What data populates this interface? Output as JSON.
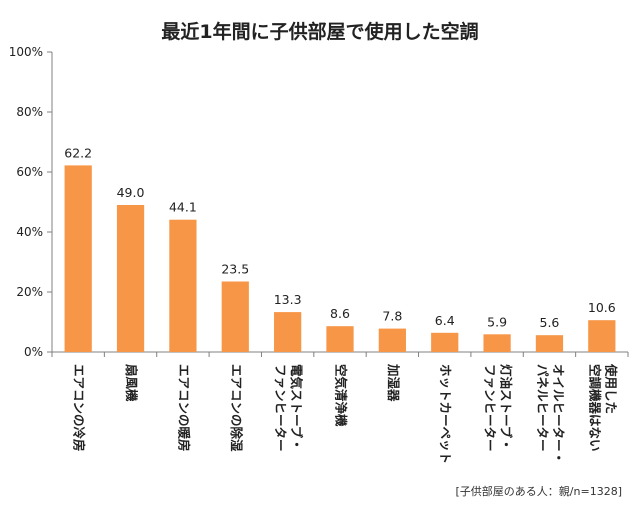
{
  "chart_data": {
    "type": "bar",
    "title": "最近1年間に子供部屋で使用した空調",
    "categories": [
      "エアコンの冷房",
      "扇風機",
      "エアコンの暖房",
      "エアコンの除湿",
      "電気ストーブ・ファンヒーター",
      "空気清浄機",
      "加湿器",
      "ホットカーペット",
      "灯油ストーブ・ファンヒーター",
      "オイルヒーター・パネルヒーター",
      "使用した空調機器はない"
    ],
    "category_label_lines": [
      [
        "エアコンの冷房"
      ],
      [
        "扇風機"
      ],
      [
        "エアコンの暖房"
      ],
      [
        "エアコンの除湿"
      ],
      [
        "電気ストーブ・",
        "ファンヒーター"
      ],
      [
        "空気清浄機"
      ],
      [
        "加湿器"
      ],
      [
        "ホットカーペット"
      ],
      [
        "灯油ストーブ・",
        "ファンヒーター"
      ],
      [
        "オイルヒーター・",
        "パネルヒーター"
      ],
      [
        "使用した",
        "空調機器はない"
      ]
    ],
    "values": [
      62.2,
      49.0,
      44.1,
      23.5,
      13.3,
      8.6,
      7.8,
      6.4,
      5.9,
      5.6,
      10.6
    ],
    "value_labels": [
      "62.2",
      "49.0",
      "44.1",
      "23.5",
      "13.3",
      "8.6",
      "7.8",
      "6.4",
      "5.9",
      "5.6",
      "10.6"
    ],
    "y_ticks": [
      "0%",
      "20%",
      "40%",
      "60%",
      "80%",
      "100%"
    ],
    "ylim": [
      0,
      100
    ],
    "xlabel": "",
    "ylabel": "",
    "note": "[子供部屋のある人：親/n=1328]",
    "bar_color": "#F79646",
    "gridlines": false
  }
}
